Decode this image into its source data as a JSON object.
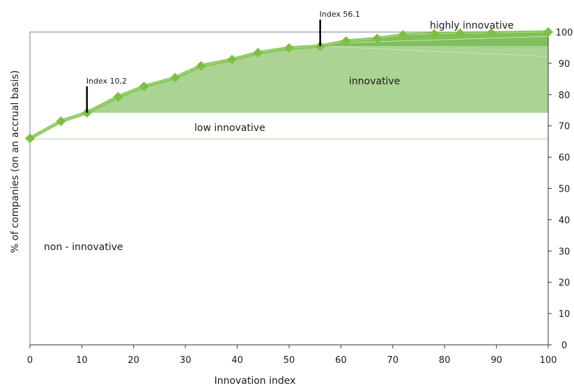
{
  "chart_data": {
    "type": "line",
    "x": [
      0,
      6,
      11,
      17,
      22,
      28,
      33,
      39,
      44,
      50,
      56,
      61,
      67,
      72,
      78,
      83,
      89,
      100
    ],
    "series": [
      {
        "values": [
          66,
          71.5,
          74.2,
          79.3,
          82.6,
          85.4,
          89.2,
          91.2,
          93.4,
          94.9,
          95.5,
          97.1,
          97.9,
          99.1,
          99.4,
          99.6,
          99.7,
          100
        ]
      }
    ],
    "xlabel": "Innovation index",
    "ylabel": "% of companies (on an accrual basis)",
    "xlim": [
      0,
      100
    ],
    "ylim": [
      0,
      100
    ],
    "xticks": [
      "0",
      "10",
      "20",
      "30",
      "40",
      "50",
      "60",
      "70",
      "80",
      "90",
      "100"
    ],
    "yticks": [
      "0",
      "10",
      "20",
      "30",
      "40",
      "50",
      "60",
      "70",
      "80",
      "90",
      "100"
    ],
    "y_axis_position": "right",
    "grid": false,
    "bands": [
      {
        "label": "non - innovative",
        "from": 0,
        "to": 65.6,
        "color": "#ffffff"
      },
      {
        "label": "low innovative",
        "from": 65.6,
        "to": 74.2,
        "color": "#d3e7c3"
      },
      {
        "label": "innovative",
        "from": 74.2,
        "to": 95.5,
        "color": "#aad394"
      },
      {
        "label": "highly innovative",
        "from": 95.5,
        "to": 100,
        "color": "#7fbf5e"
      }
    ],
    "annotations": [
      {
        "text": "Index 10,2",
        "x": 11,
        "y": 74.2
      },
      {
        "text": "Index 56.1",
        "x": 56,
        "y": 95.5
      }
    ],
    "colors": {
      "line": "#7ac143",
      "marker": "#7ac143"
    }
  }
}
